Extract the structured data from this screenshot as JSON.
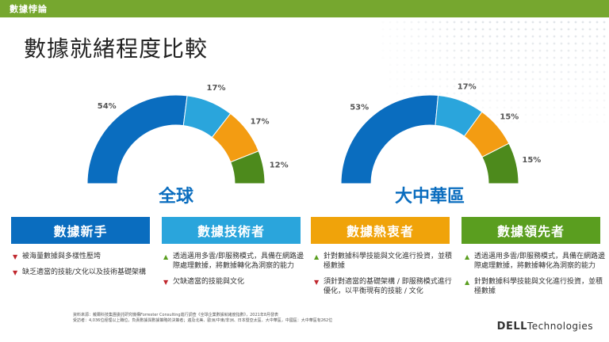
{
  "header": {
    "section_label": "數據悖論"
  },
  "slide_title": "數據就緒程度比較",
  "colors": {
    "bar": "#76a72f",
    "segment_1": "#0a6dbf",
    "segment_2": "#2aa5dc",
    "segment_3": "#f39c12",
    "segment_4": "#4d8a1c",
    "region_label": "#0a6dbf"
  },
  "chart_data": [
    {
      "type": "pie",
      "title": "全球",
      "categories": [
        "數據新手",
        "數據技術者",
        "數據熱衷者",
        "數據領先者"
      ],
      "values": [
        54,
        17,
        17,
        12
      ],
      "labels": [
        "54%",
        "17%",
        "17%",
        "12%"
      ]
    },
    {
      "type": "pie",
      "title": "大中華區",
      "categories": [
        "數據新手",
        "數據技術者",
        "數據熱衷者",
        "數據領先者"
      ],
      "values": [
        53,
        17,
        15,
        15
      ],
      "labels": [
        "53%",
        "17%",
        "15%",
        "15%"
      ]
    }
  ],
  "columns": [
    {
      "title": "數據新手",
      "color": "#0a6dbf",
      "items": [
        {
          "marker": "▼",
          "text": "被海量數據與多樣性壓垮"
        },
        {
          "marker": "▼",
          "text": "缺乏適當的技能/文化以及技術基礎架構"
        }
      ]
    },
    {
      "title": "數據技術者",
      "color": "#2aa5dc",
      "items": [
        {
          "marker": "▲",
          "text": "透過邁用多雲/即服務模式，具備在網路邊際處理數據，將數據轉化為洞察的能力"
        },
        {
          "marker": "▼",
          "text": "欠缺適當的技能與文化"
        }
      ]
    },
    {
      "title": "數據熱衷者",
      "color": "#f0a30a",
      "items": [
        {
          "marker": "▲",
          "text": "針對數據科學技能與文化進行投資，並積極數據"
        },
        {
          "marker": "▼",
          "text": "須針對適當的基礎架構 / 即服務模式進行優化，以平衡現有的技能 / 文化"
        }
      ]
    },
    {
      "title": "數據領先者",
      "color": "#5a9e1f",
      "items": [
        {
          "marker": "▲",
          "text": "透過邁用多雲/即服務模式，具備在網路邊際處理數據，將數據轉化為洞察的能力"
        },
        {
          "marker": "▲",
          "text": "針對數據科學技能與文化進行投資，並積極數據"
        }
      ]
    }
  ],
  "footnote": {
    "line1": "資料來源：戴爾科技集團委託研究機構Forrester Consulting進行調查《全球企業數據就緒度指數》，2021年8月發表",
    "line2": "受訪者：4,036位經理以上職位，負責數據與數據策略的決策者；遍及北美、歐洲/中東/非洲、日本暨亞太區、大中華區，中國區：大中華區有262位"
  },
  "logo": {
    "brand": "DELL",
    "suffix": "Technologies"
  }
}
